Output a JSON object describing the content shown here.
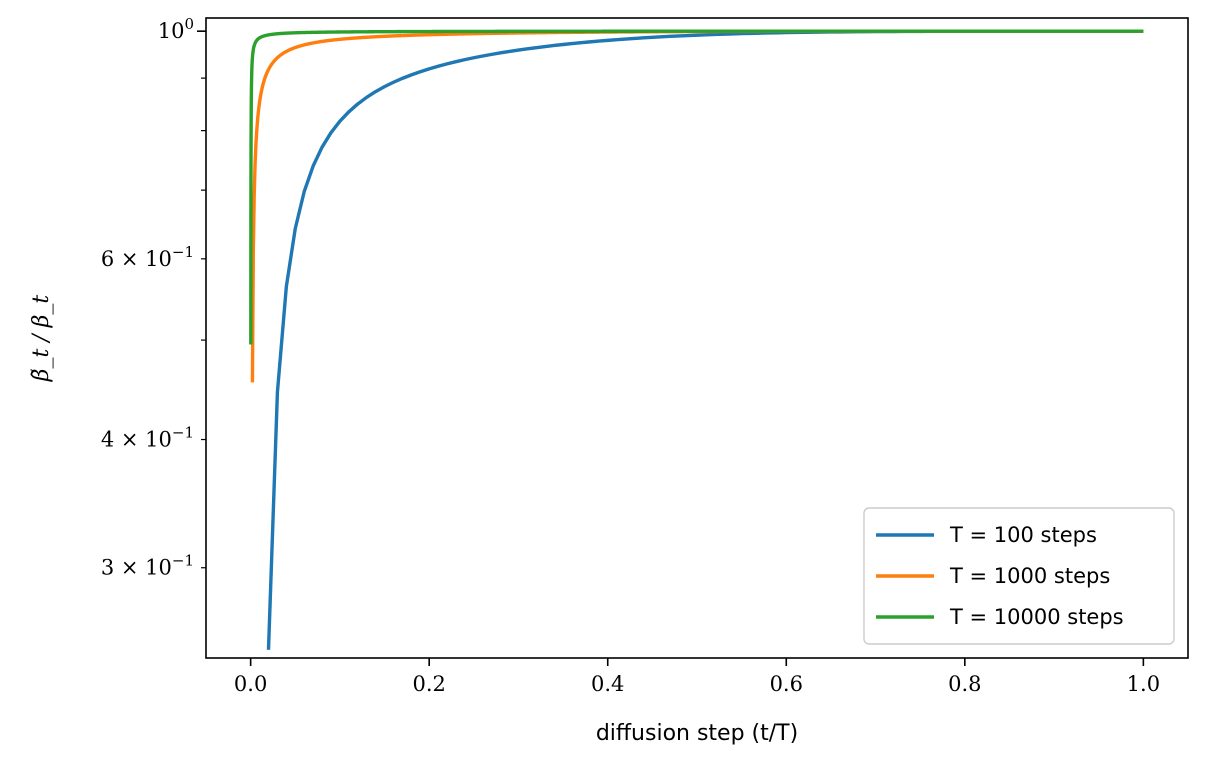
{
  "chart_data": {
    "type": "line",
    "title": "",
    "xlabel": "diffusion step (t/T)",
    "ylabel": "β̃_t / β_t",
    "xlim": [
      -0.05,
      1.05
    ],
    "ylim": [
      0.245,
      1.03
    ],
    "y_scale": "log",
    "grid": false,
    "legend_position": "lower-right",
    "x_ticks": [
      {
        "value": 0.0,
        "label": "0.0"
      },
      {
        "value": 0.2,
        "label": "0.2"
      },
      {
        "value": 0.4,
        "label": "0.4"
      },
      {
        "value": 0.6,
        "label": "0.6"
      },
      {
        "value": 0.8,
        "label": "0.8"
      },
      {
        "value": 1.0,
        "label": "1.0"
      }
    ],
    "y_major_ticks": [
      {
        "value": 1.0,
        "base": "10",
        "exp": "0"
      }
    ],
    "y_minor_ticks": [
      {
        "value": 0.3,
        "coef": "3",
        "base": "10",
        "exp": "−1",
        "labeled": true
      },
      {
        "value": 0.4,
        "coef": "4",
        "base": "10",
        "exp": "−1",
        "labeled": true
      },
      {
        "value": 0.5,
        "labeled": false
      },
      {
        "value": 0.6,
        "coef": "6",
        "base": "10",
        "exp": "−1",
        "labeled": true
      },
      {
        "value": 0.7,
        "labeled": false
      },
      {
        "value": 0.8,
        "labeled": false
      },
      {
        "value": 0.9,
        "labeled": false
      }
    ],
    "series": [
      {
        "name": "T = 100 steps",
        "color": "#1f77b4",
        "T": 100
      },
      {
        "name": "T = 1000 steps",
        "color": "#ff7f0e",
        "T": 1000
      },
      {
        "name": "T = 10000 steps",
        "color": "#2ca02c",
        "T": 10000
      }
    ]
  }
}
